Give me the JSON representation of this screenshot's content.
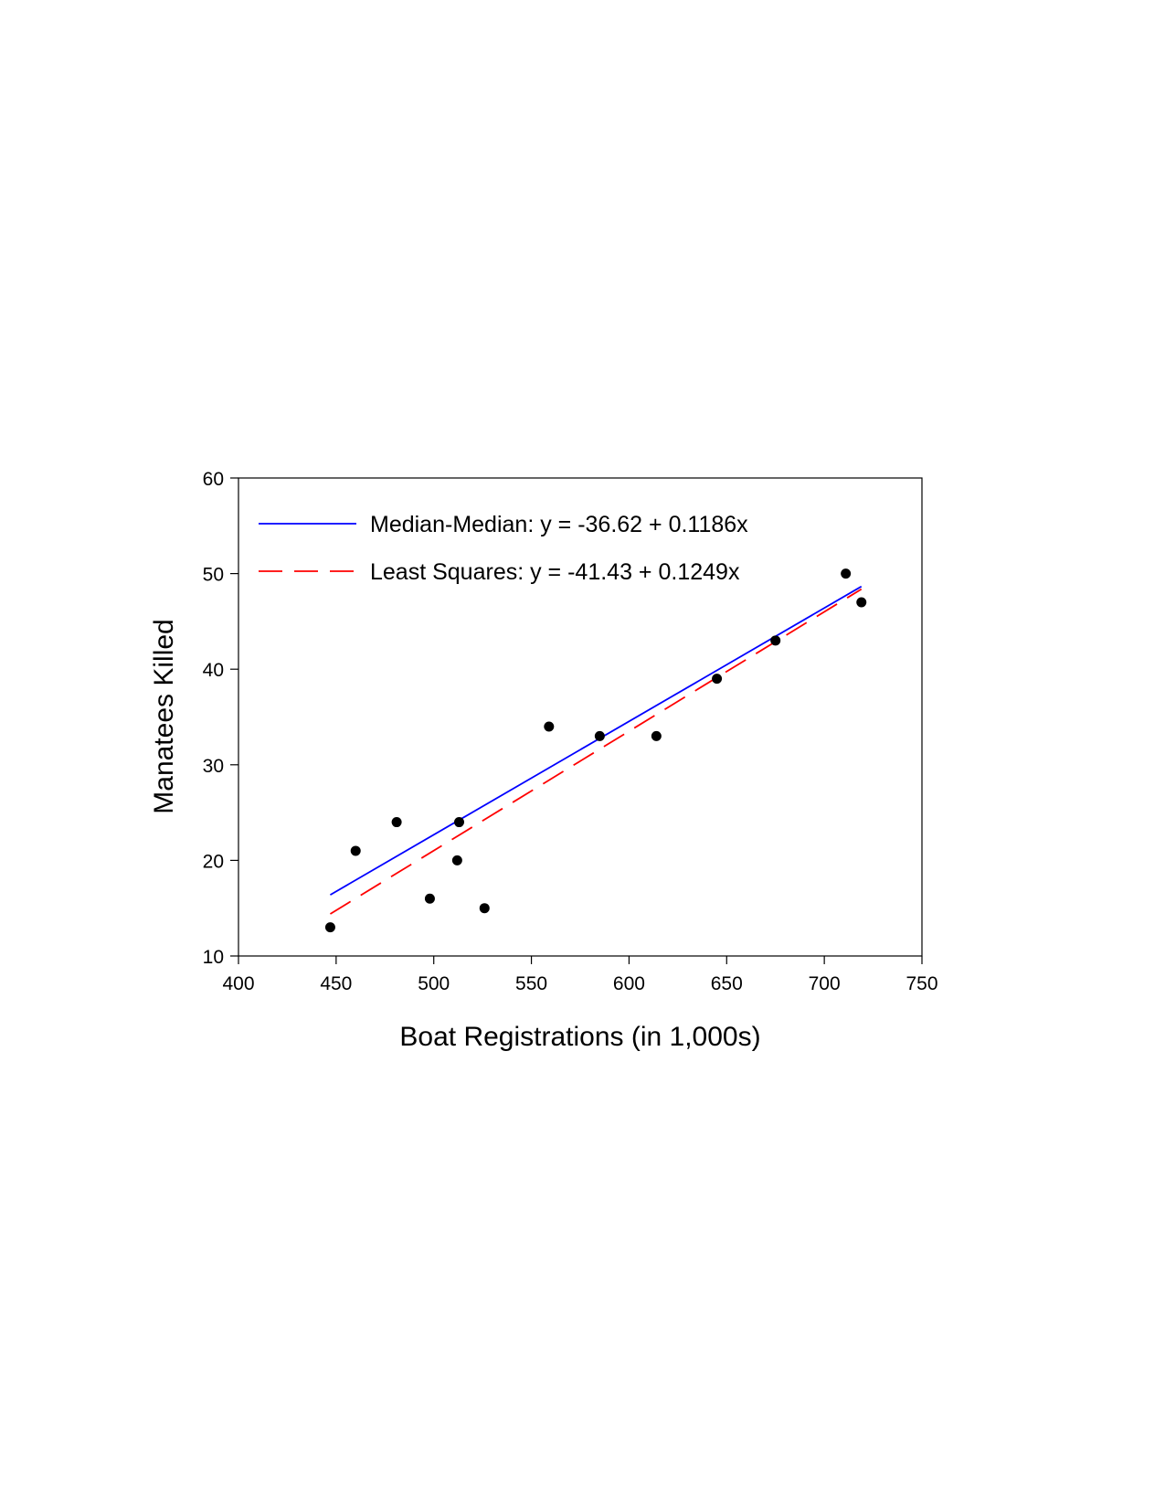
{
  "chart_data": {
    "type": "scatter",
    "xlabel": "Boat Registrations (in 1,000s)",
    "ylabel": "Manatees Killed",
    "xlim": [
      400,
      750
    ],
    "ylim": [
      10,
      60
    ],
    "xticks": [
      400,
      450,
      500,
      550,
      600,
      650,
      700,
      750
    ],
    "yticks": [
      10,
      20,
      30,
      40,
      50,
      60
    ],
    "grid": false,
    "legend_position": "top-left",
    "points": {
      "color": "#000000",
      "x": [
        447,
        460,
        481,
        498,
        512,
        513,
        526,
        559,
        585,
        614,
        645,
        675,
        711,
        719
      ],
      "y": [
        13,
        21,
        24,
        16,
        20,
        24,
        15,
        34,
        33,
        33,
        39,
        43,
        50,
        47
      ]
    },
    "lines": [
      {
        "label": "Median-Median: y = -36.62 + 0.1186x",
        "intercept": -36.62,
        "slope": 0.1186,
        "x_range": [
          447,
          719
        ],
        "color": "#0000ff",
        "style": "solid"
      },
      {
        "label": "Least Squares: y = -41.43 + 0.1249x",
        "intercept": -41.43,
        "slope": 0.1249,
        "x_range": [
          447,
          719
        ],
        "color": "#ff0000",
        "style": "dashed"
      }
    ]
  }
}
